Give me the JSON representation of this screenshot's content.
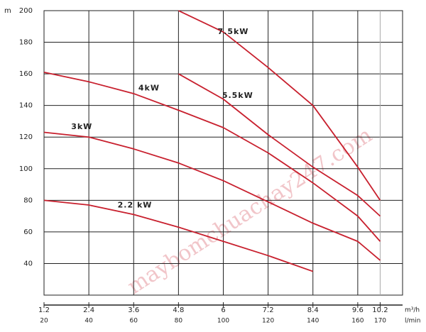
{
  "chart_data": {
    "type": "line",
    "ylabel": "m",
    "xlabel": "l/min",
    "x2label": "m³/h",
    "watermark": "maybomchuachay247.com",
    "xlim": [
      20,
      180
    ],
    "xticks": [
      20,
      40,
      60,
      80,
      100,
      120,
      140,
      160,
      170
    ],
    "x2lim": [
      1.2,
      10.8
    ],
    "x2ticks": [
      1.2,
      2.4,
      3.6,
      4.8,
      6,
      7.2,
      8.4,
      9.6,
      10.2
    ],
    "ylim": [
      20,
      200
    ],
    "yticks": [
      40,
      60,
      80,
      100,
      120,
      140,
      160,
      180,
      200
    ],
    "grid": true,
    "series": [
      {
        "name": "7.5kW",
        "color": "#c8202e",
        "x": [
          80,
          100,
          120,
          140,
          160,
          170
        ],
        "values": [
          200,
          186.5,
          164,
          140,
          101,
          80
        ]
      },
      {
        "name": "5.5kW",
        "color": "#c8202e",
        "x": [
          80,
          100,
          120,
          140,
          160,
          170
        ],
        "values": [
          160,
          144,
          121.5,
          101,
          83,
          70
        ]
      },
      {
        "name": "4kW",
        "color": "#c8202e",
        "x": [
          20,
          40,
          60,
          80,
          100,
          120,
          140,
          160,
          170
        ],
        "values": [
          161,
          155,
          147.5,
          137,
          126,
          110,
          91,
          70,
          54
        ]
      },
      {
        "name": "3kW",
        "color": "#c8202e",
        "x": [
          20,
          40,
          60,
          80,
          100,
          120,
          140,
          160,
          170
        ],
        "values": [
          123,
          120,
          112.5,
          103.6,
          92.4,
          79,
          65.5,
          54,
          42
        ]
      },
      {
        "name": "2.2 kW",
        "color": "#c8202e",
        "x": [
          20,
          40,
          60,
          80,
          100,
          120,
          140
        ],
        "values": [
          80,
          77,
          71,
          63,
          54,
          45,
          35
        ]
      }
    ]
  }
}
